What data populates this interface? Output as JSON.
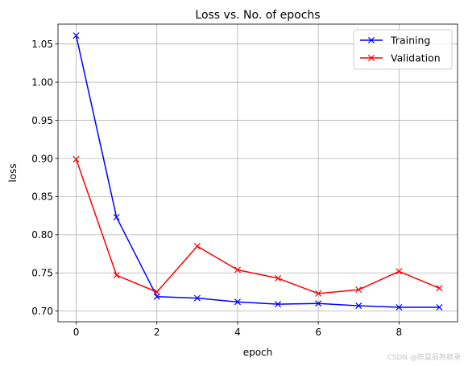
{
  "chart_data": {
    "type": "line",
    "title": "Loss vs. No. of epochs",
    "xlabel": "epoch",
    "ylabel": "loss",
    "xlim": [
      -0.45,
      9.45
    ],
    "ylim": [
      0.686,
      1.076
    ],
    "xticks": [
      0,
      2,
      4,
      6,
      8
    ],
    "xtick_labels": [
      "0",
      "2",
      "4",
      "6",
      "8"
    ],
    "yticks": [
      0.7,
      0.75,
      0.8,
      0.85,
      0.9,
      0.95,
      1.0,
      1.05
    ],
    "ytick_labels": [
      "0.70",
      "0.75",
      "0.80",
      "0.85",
      "0.90",
      "0.95",
      "1.00",
      "1.05"
    ],
    "grid": true,
    "legend_position": "upper right",
    "x": [
      0,
      1,
      2,
      3,
      4,
      5,
      6,
      7,
      8,
      9
    ],
    "series": [
      {
        "name": "Training",
        "color": "#0000ff",
        "marker": "x",
        "values": [
          1.061,
          0.823,
          0.719,
          0.717,
          0.712,
          0.709,
          0.71,
          0.707,
          0.705,
          0.705
        ]
      },
      {
        "name": "Validation",
        "color": "#ff0000",
        "marker": "x",
        "values": [
          0.899,
          0.747,
          0.725,
          0.785,
          0.754,
          0.743,
          0.723,
          0.728,
          0.752,
          0.73
        ]
      }
    ]
  },
  "watermark": "CSDN @陈晨辰熟稳重"
}
